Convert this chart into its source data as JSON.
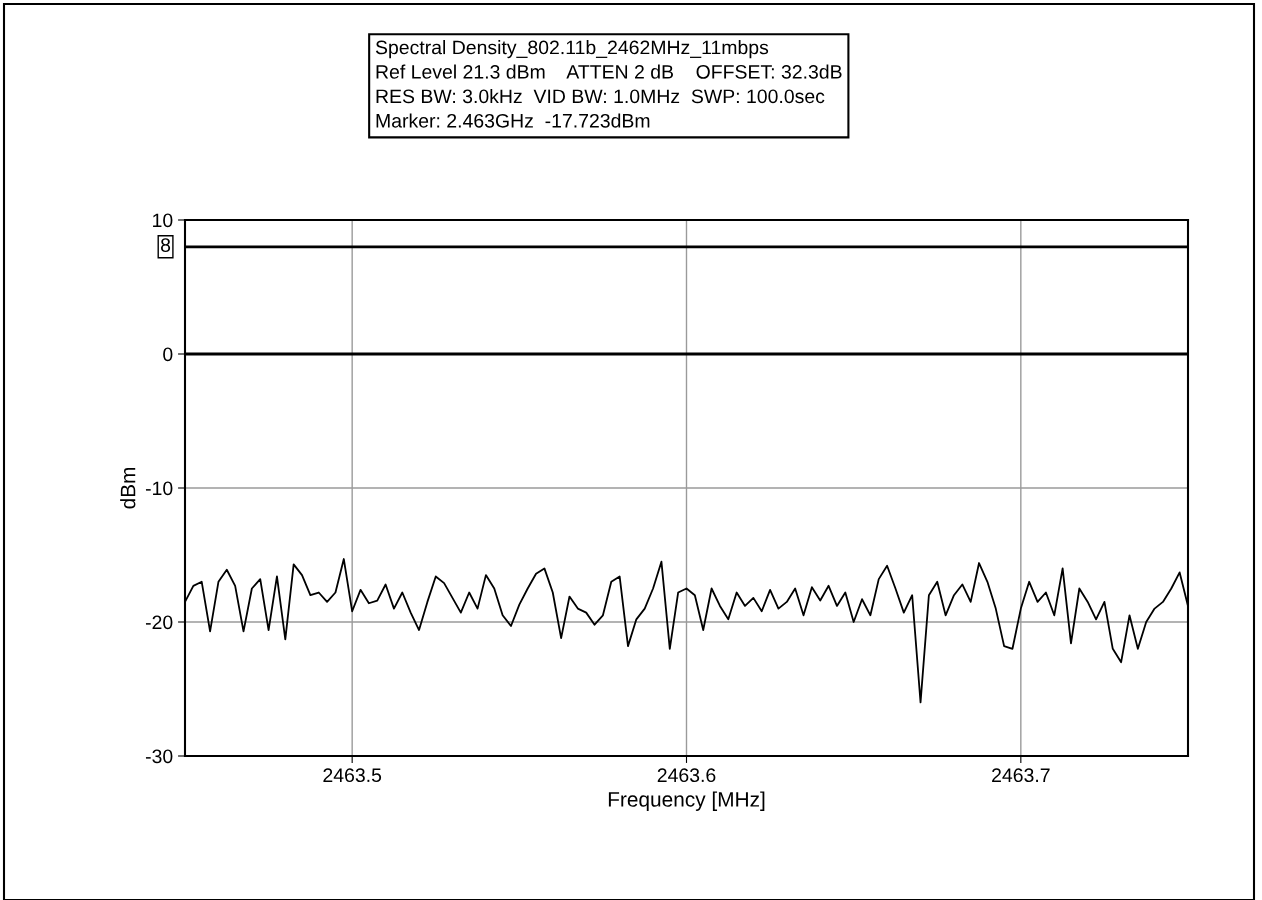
{
  "chart_data": {
    "type": "line",
    "title": "Spectral Density_802.11b_2462MHz_11mbps",
    "annotations": [
      "Ref Level 21.3 dBm    ATTEN 2 dB    OFFSET: 32.3dB",
      "RES BW: 3.0kHz  VID BW: 1.0MHz  SWP: 100.0sec",
      "Marker: 2.463GHz  -17.723dBm"
    ],
    "xlabel": "Frequency [MHz]",
    "ylabel": "dBm",
    "xlim": [
      2463.45,
      2463.75
    ],
    "xticks": [
      2463.5,
      2463.6,
      2463.7
    ],
    "ylim": [
      -30,
      10
    ],
    "yticks": [
      -30,
      -20,
      -10,
      0,
      10
    ],
    "grid": true,
    "legend": false,
    "marker": "none",
    "line_style": "solid",
    "ref_lines": [
      {
        "axis": "y",
        "value": 8,
        "label": "8",
        "color": "#000000"
      },
      {
        "axis": "y",
        "value": 0,
        "label": null,
        "color": "#000000"
      }
    ],
    "series": [
      {
        "color": "#000000",
        "x": [
          2463.45,
          2463.4525,
          2463.455,
          2463.4575,
          2463.46,
          2463.4625,
          2463.465,
          2463.4675,
          2463.47,
          2463.4725,
          2463.475,
          2463.4775,
          2463.48,
          2463.4825,
          2463.485,
          2463.4875,
          2463.49,
          2463.4925,
          2463.495,
          2463.4975,
          2463.5,
          2463.5025,
          2463.505,
          2463.5075,
          2463.51,
          2463.5125,
          2463.515,
          2463.5175,
          2463.52,
          2463.5225,
          2463.525,
          2463.5275,
          2463.53,
          2463.5325,
          2463.535,
          2463.5375,
          2463.54,
          2463.5425,
          2463.545,
          2463.5475,
          2463.55,
          2463.5525,
          2463.555,
          2463.5575,
          2463.56,
          2463.5625,
          2463.565,
          2463.5675,
          2463.57,
          2463.5725,
          2463.575,
          2463.5775,
          2463.58,
          2463.5825,
          2463.585,
          2463.5875,
          2463.59,
          2463.5925,
          2463.595,
          2463.5975,
          2463.6,
          2463.6025,
          2463.605,
          2463.6075,
          2463.61,
          2463.6125,
          2463.615,
          2463.6175,
          2463.62,
          2463.6225,
          2463.625,
          2463.6275,
          2463.63,
          2463.6325,
          2463.635,
          2463.6375,
          2463.64,
          2463.6425,
          2463.645,
          2463.6475,
          2463.65,
          2463.6525,
          2463.655,
          2463.6575,
          2463.66,
          2463.6625,
          2463.665,
          2463.6675,
          2463.67,
          2463.6725,
          2463.675,
          2463.6775,
          2463.68,
          2463.6825,
          2463.685,
          2463.6875,
          2463.69,
          2463.6925,
          2463.695,
          2463.6975,
          2463.7,
          2463.7025,
          2463.705,
          2463.7075,
          2463.71,
          2463.7125,
          2463.715,
          2463.7175,
          2463.72,
          2463.7225,
          2463.725,
          2463.7275,
          2463.73,
          2463.7325,
          2463.735,
          2463.7375,
          2463.74,
          2463.7425,
          2463.745,
          2463.7475,
          2463.75
        ],
        "values": [
          -18.5,
          -17.3,
          -17.0,
          -20.7,
          -17.0,
          -16.1,
          -17.3,
          -20.7,
          -17.5,
          -16.8,
          -20.6,
          -16.6,
          -21.3,
          -15.7,
          -16.5,
          -18.0,
          -17.8,
          -18.5,
          -17.8,
          -15.3,
          -19.2,
          -17.6,
          -18.6,
          -18.4,
          -17.2,
          -19.0,
          -17.8,
          -19.3,
          -20.6,
          -18.5,
          -16.6,
          -17.1,
          -18.2,
          -19.3,
          -17.8,
          -19.0,
          -16.5,
          -17.5,
          -19.5,
          -20.3,
          -18.7,
          -17.5,
          -16.4,
          -16.0,
          -17.8,
          -21.2,
          -18.1,
          -19.0,
          -19.3,
          -20.2,
          -19.5,
          -17.0,
          -16.6,
          -21.8,
          -19.8,
          -19.0,
          -17.5,
          -15.5,
          -22.0,
          -17.8,
          -17.5,
          -18.0,
          -20.6,
          -17.5,
          -18.8,
          -19.8,
          -17.8,
          -18.8,
          -18.2,
          -19.2,
          -17.6,
          -19.0,
          -18.5,
          -17.5,
          -19.5,
          -17.4,
          -18.4,
          -17.3,
          -18.8,
          -17.8,
          -20.0,
          -18.3,
          -19.5,
          -16.8,
          -15.8,
          -17.5,
          -19.3,
          -18.0,
          -26.0,
          -18.0,
          -17.0,
          -19.5,
          -18.0,
          -17.2,
          -18.5,
          -15.6,
          -17.0,
          -19.0,
          -21.8,
          -22.0,
          -19.0,
          -17.0,
          -18.5,
          -17.8,
          -19.5,
          -16.0,
          -21.6,
          -17.5,
          -18.5,
          -19.8,
          -18.5,
          -22.0,
          -23.0,
          -19.5,
          -22.0,
          -20.0,
          -19.0,
          -18.5,
          -17.5,
          -16.3,
          -18.8
        ]
      }
    ]
  }
}
